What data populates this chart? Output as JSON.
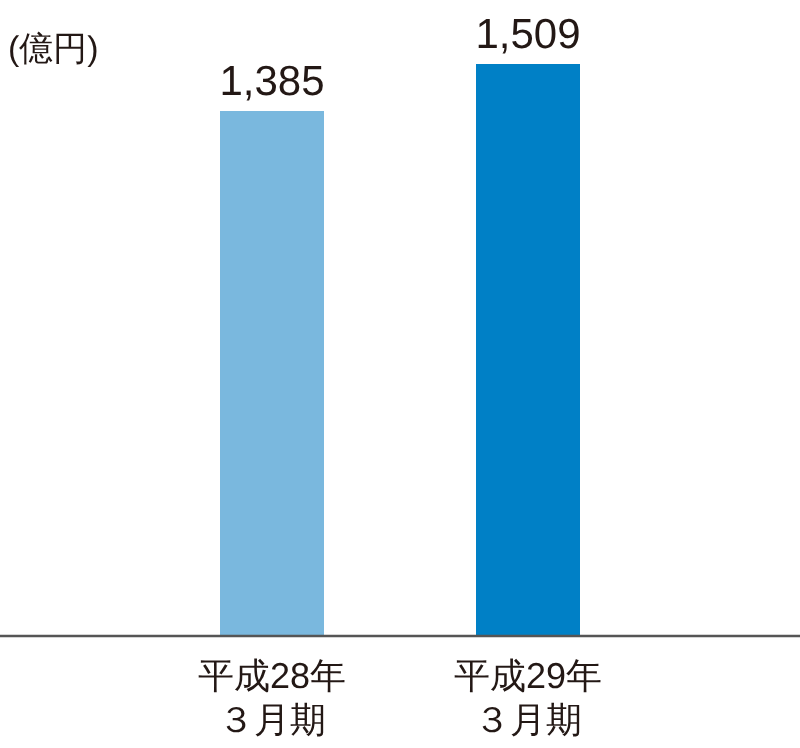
{
  "chart_data": {
    "type": "bar",
    "ylabel": "(億円)",
    "categories": [
      "平成28年３月期",
      "平成29年３月期"
    ],
    "values": [
      1385,
      1509
    ],
    "colors": [
      "#7ab8de",
      "#0080c6"
    ],
    "value_labels": [
      "1,385",
      "1,509"
    ]
  }
}
